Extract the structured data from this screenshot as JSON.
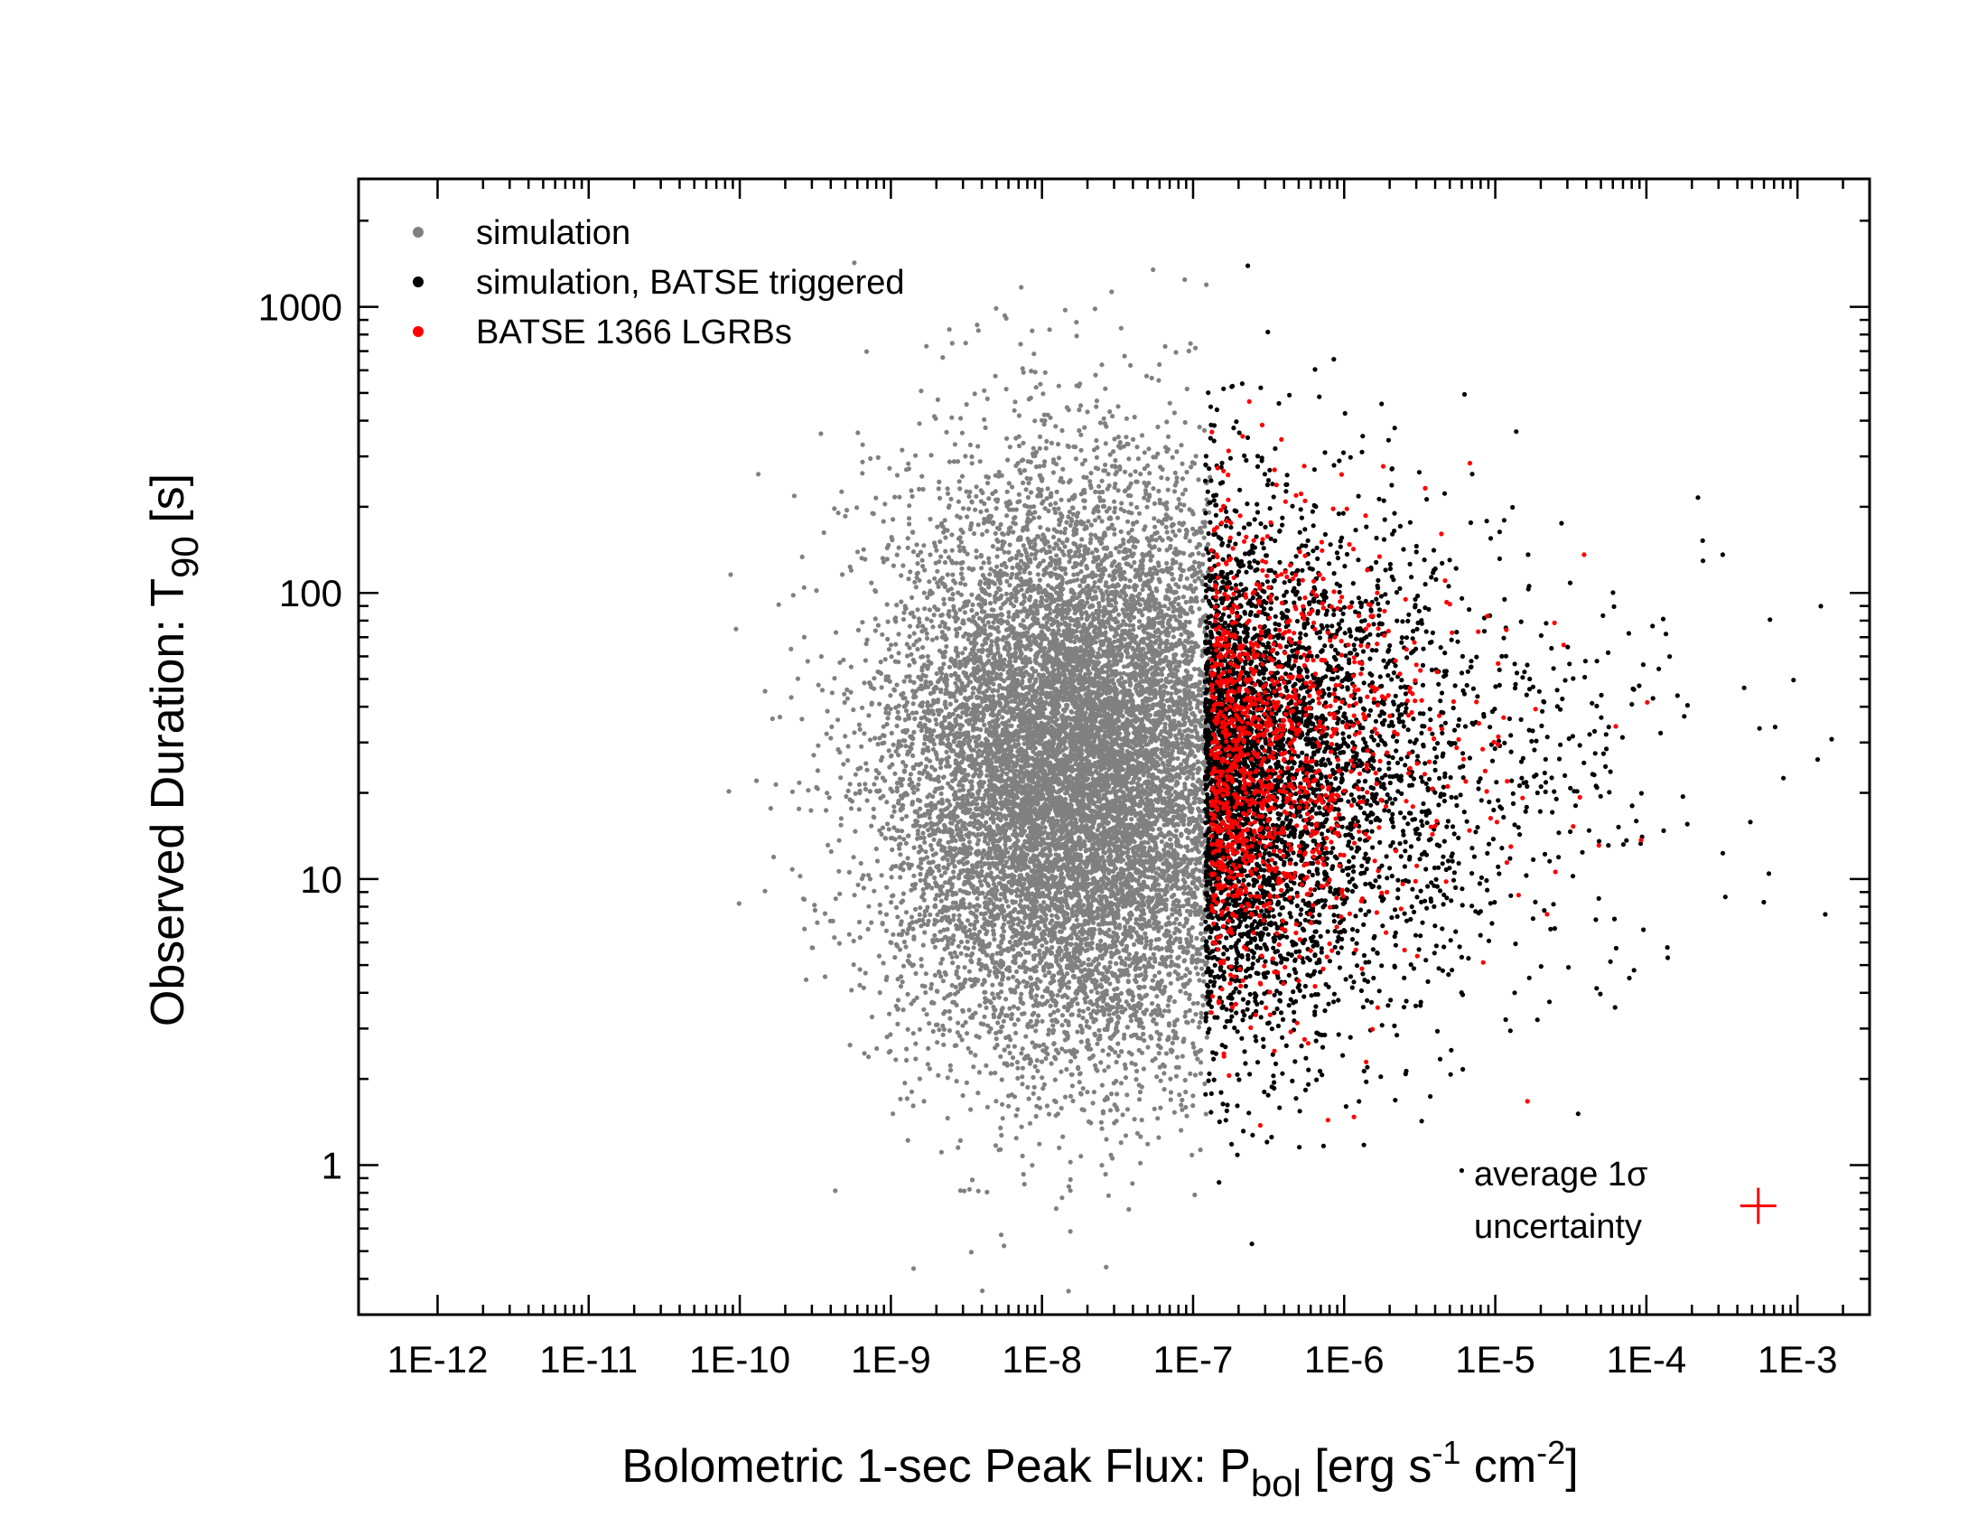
{
  "chart_data": {
    "type": "scatter",
    "title": "",
    "xlabel": {
      "main": "Bolometric 1-sec Peak Flux: P",
      "sub": "bol",
      "units_open": " [erg s",
      "sup1": "-1",
      "units_mid": " cm",
      "sup2": "-2",
      "units_close": "]"
    },
    "ylabel": {
      "main": "Observed Duration: T",
      "sub": "90",
      "units": " [s]"
    },
    "x_scale": "log",
    "y_scale": "log",
    "xlim": [
      3e-13,
      0.003
    ],
    "ylim": [
      0.3,
      2800
    ],
    "x_ticks": [
      {
        "value": 1e-12,
        "label": "1E-12"
      },
      {
        "value": 1e-11,
        "label": "1E-11"
      },
      {
        "value": 1e-10,
        "label": "1E-10"
      },
      {
        "value": 1e-09,
        "label": "1E-9"
      },
      {
        "value": 1e-08,
        "label": "1E-8"
      },
      {
        "value": 1e-07,
        "label": "1E-7"
      },
      {
        "value": 1e-06,
        "label": "1E-6"
      },
      {
        "value": 1e-05,
        "label": "1E-5"
      },
      {
        "value": 0.0001,
        "label": "1E-4"
      },
      {
        "value": 0.001,
        "label": "1E-3"
      }
    ],
    "y_ticks": [
      {
        "value": 1,
        "label": "1"
      },
      {
        "value": 10,
        "label": "10"
      },
      {
        "value": 100,
        "label": "100"
      },
      {
        "value": 1000,
        "label": "1000"
      }
    ],
    "grid": false,
    "legend_position": "top-left",
    "series": [
      {
        "name": "simulation",
        "color": "#808080",
        "count": 12000,
        "distribution": {
          "log_x_mean": -7.75,
          "log_x_sd": 0.62,
          "log_y_mean": 1.38,
          "log_y_sd": 0.5
        },
        "visible_x_max": 1.3e-07
      },
      {
        "name": "simulation, BATSE triggered",
        "color": "#000000",
        "count": 4500,
        "distribution": {
          "log_x_min": -6.92,
          "log_x_decay": 0.62,
          "log_y_mean": 1.38,
          "log_y_sd": 0.45
        }
      },
      {
        "name": "BATSE 1366 LGRBs",
        "color": "#ff0000",
        "count": 1366,
        "distribution": {
          "log_x_min": -6.88,
          "log_x_decay": 0.45,
          "log_y_mean": 1.42,
          "log_y_sd": 0.38
        }
      }
    ],
    "annotation": {
      "line1": "average 1σ",
      "line2": "uncertainty",
      "marker_color": "#ff0000",
      "x": 0.00055,
      "y": 0.72
    }
  }
}
